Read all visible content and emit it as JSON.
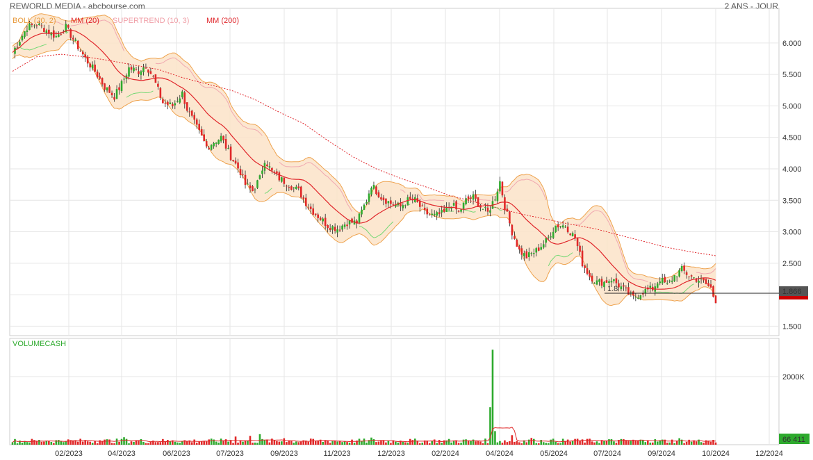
{
  "header": {
    "title": "REWORLD MEDIA - abcbourse.com",
    "period": "2 ANS - JOUR"
  },
  "legend": [
    {
      "label": "BOLL (20, 2)",
      "color": "#e89a3c"
    },
    {
      "label": "MM (20)",
      "color": "#e0262b"
    },
    {
      "label": "SUPERTREND (10, 3)",
      "color": "#f0a0a8"
    },
    {
      "label": "MM (200)",
      "color": "#e0262b"
    }
  ],
  "volume_label": "VOLUMECASH",
  "badges": {
    "last_price": "1.866",
    "last_volume": "66 411",
    "low_marker": "1.8"
  },
  "colors": {
    "up": "#2eaa2e",
    "down": "#e02828",
    "band_fill": "#fbe3c8",
    "band_stroke": "#eea24d",
    "ma20": "#e0262b",
    "ma200": "#e0262b",
    "supertrend_up": "#74d874",
    "supertrend_down": "#f0a8b0"
  },
  "chart_data": [
    {
      "type": "candlestick",
      "title": "",
      "x_ticks": [
        "02/2023",
        "04/2023",
        "06/2023",
        "07/2023",
        "09/2023",
        "11/2023",
        "12/2023",
        "02/2024",
        "04/2024",
        "05/2024",
        "07/2024",
        "09/2024",
        "10/2024",
        "12/2024"
      ],
      "y_ticks": [
        "1.500",
        "2.000",
        "2.500",
        "3.000",
        "3.500",
        "4.000",
        "4.500",
        "5.000",
        "5.500",
        "6.000"
      ],
      "ylim": [
        1.35,
        6.55
      ],
      "price_path": [
        [
          0,
          5.85
        ],
        [
          6,
          6.25
        ],
        [
          10,
          6.3
        ],
        [
          14,
          6.2
        ],
        [
          18,
          6.1
        ],
        [
          22,
          6.25
        ],
        [
          26,
          6.0
        ],
        [
          30,
          5.75
        ],
        [
          34,
          5.55
        ],
        [
          38,
          5.3
        ],
        [
          42,
          5.15
        ],
        [
          45,
          5.35
        ],
        [
          48,
          5.6
        ],
        [
          52,
          5.55
        ],
        [
          55,
          5.65
        ],
        [
          58,
          5.45
        ],
        [
          62,
          5.05
        ],
        [
          66,
          5.0
        ],
        [
          70,
          5.2
        ],
        [
          72,
          4.95
        ],
        [
          76,
          4.65
        ],
        [
          80,
          4.35
        ],
        [
          84,
          4.45
        ],
        [
          86,
          4.5
        ],
        [
          90,
          4.2
        ],
        [
          94,
          3.95
        ],
        [
          96,
          3.75
        ],
        [
          99,
          3.65
        ],
        [
          102,
          3.85
        ],
        [
          104,
          4.15
        ],
        [
          107,
          3.95
        ],
        [
          110,
          3.85
        ],
        [
          114,
          3.75
        ],
        [
          118,
          3.65
        ],
        [
          122,
          3.4
        ],
        [
          126,
          3.25
        ],
        [
          130,
          3.1
        ],
        [
          134,
          3.05
        ],
        [
          138,
          3.15
        ],
        [
          142,
          3.15
        ],
        [
          146,
          3.5
        ],
        [
          148,
          3.75
        ],
        [
          152,
          3.55
        ],
        [
          156,
          3.45
        ],
        [
          160,
          3.4
        ],
        [
          163,
          3.5
        ],
        [
          166,
          3.5
        ],
        [
          170,
          3.3
        ],
        [
          174,
          3.25
        ],
        [
          178,
          3.3
        ],
        [
          181,
          3.45
        ],
        [
          184,
          3.3
        ],
        [
          187,
          3.5
        ],
        [
          190,
          3.55
        ],
        [
          193,
          3.4
        ],
        [
          196,
          3.3
        ],
        [
          199,
          3.55
        ],
        [
          201,
          3.8
        ],
        [
          203,
          3.4
        ],
        [
          206,
          3.0
        ],
        [
          209,
          2.7
        ],
        [
          212,
          2.6
        ],
        [
          216,
          2.7
        ],
        [
          220,
          2.85
        ],
        [
          224,
          3.1
        ],
        [
          228,
          3.1
        ],
        [
          232,
          2.9
        ],
        [
          235,
          2.5
        ],
        [
          238,
          2.3
        ],
        [
          241,
          2.2
        ],
        [
          244,
          2.2
        ],
        [
          247,
          2.25
        ],
        [
          250,
          2.15
        ],
        [
          253,
          2.05
        ],
        [
          256,
          1.95
        ],
        [
          260,
          2.05
        ],
        [
          264,
          2.1
        ],
        [
          267,
          2.25
        ],
        [
          270,
          2.15
        ],
        [
          273,
          2.3
        ],
        [
          276,
          2.4
        ],
        [
          279,
          2.3
        ],
        [
          282,
          2.25
        ],
        [
          285,
          2.2
        ],
        [
          288,
          2.1
        ],
        [
          290,
          1.866
        ]
      ],
      "ma200_path": [
        [
          0,
          5.55
        ],
        [
          10,
          5.78
        ],
        [
          20,
          5.82
        ],
        [
          30,
          5.78
        ],
        [
          40,
          5.72
        ],
        [
          50,
          5.65
        ],
        [
          60,
          5.58
        ],
        [
          70,
          5.45
        ],
        [
          80,
          5.35
        ],
        [
          90,
          5.25
        ],
        [
          100,
          5.1
        ],
        [
          110,
          4.9
        ],
        [
          120,
          4.72
        ],
        [
          130,
          4.45
        ],
        [
          140,
          4.2
        ],
        [
          150,
          4.0
        ],
        [
          160,
          3.85
        ],
        [
          170,
          3.72
        ],
        [
          180,
          3.58
        ],
        [
          190,
          3.48
        ],
        [
          200,
          3.38
        ],
        [
          210,
          3.28
        ],
        [
          220,
          3.2
        ],
        [
          230,
          3.12
        ],
        [
          240,
          3.05
        ],
        [
          250,
          2.95
        ],
        [
          260,
          2.85
        ],
        [
          270,
          2.75
        ],
        [
          280,
          2.68
        ],
        [
          290,
          2.62
        ]
      ],
      "last_price": 1.866,
      "low_marker_price": 1.8
    },
    {
      "type": "bar",
      "title": "VOLUMECASH",
      "y_ticks": [
        "2000K"
      ],
      "ylim": [
        0,
        3000
      ],
      "spikes": [
        [
          14,
          120
        ],
        [
          22,
          110
        ],
        [
          36,
          130
        ],
        [
          46,
          220
        ],
        [
          58,
          120
        ],
        [
          66,
          130
        ],
        [
          88,
          160
        ],
        [
          92,
          240
        ],
        [
          98,
          260
        ],
        [
          102,
          310
        ],
        [
          112,
          190
        ],
        [
          120,
          130
        ],
        [
          140,
          150
        ],
        [
          148,
          210
        ],
        [
          160,
          120
        ],
        [
          186,
          150
        ],
        [
          197,
          1100
        ],
        [
          198,
          2790
        ],
        [
          199,
          400
        ],
        [
          206,
          280
        ],
        [
          214,
          200
        ],
        [
          232,
          170
        ],
        [
          262,
          130
        ],
        [
          275,
          190
        ],
        [
          286,
          130
        ]
      ],
      "last_volume": 66.411
    }
  ]
}
